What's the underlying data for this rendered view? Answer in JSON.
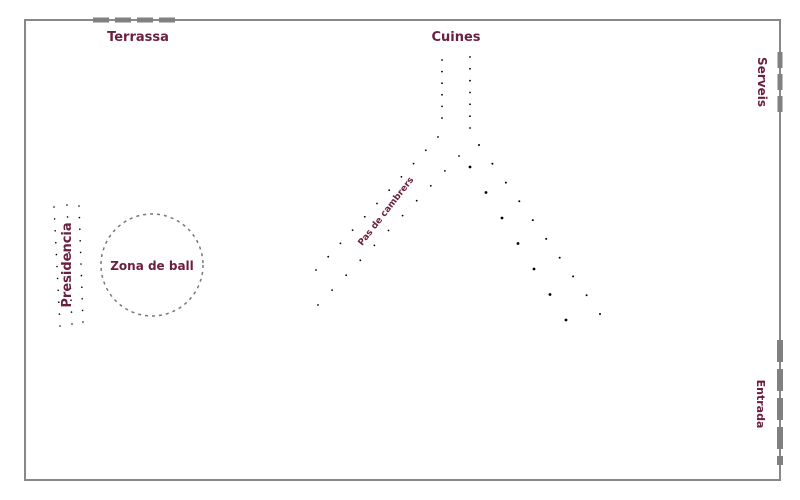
{
  "labels": {
    "terrassa": "Terrassa",
    "cuines": "Cuines",
    "serveis": "Serveis",
    "presidencia": "Presidencia",
    "zona_ball": "Zona de ball",
    "pas_cambrers": "Pas de cambrers",
    "entrada": "Entrada"
  },
  "colors": {
    "label": "#6b1f3f",
    "wall": "#888888",
    "opening": "#808080",
    "dots": "#000000",
    "dance_circle": "#777777"
  }
}
